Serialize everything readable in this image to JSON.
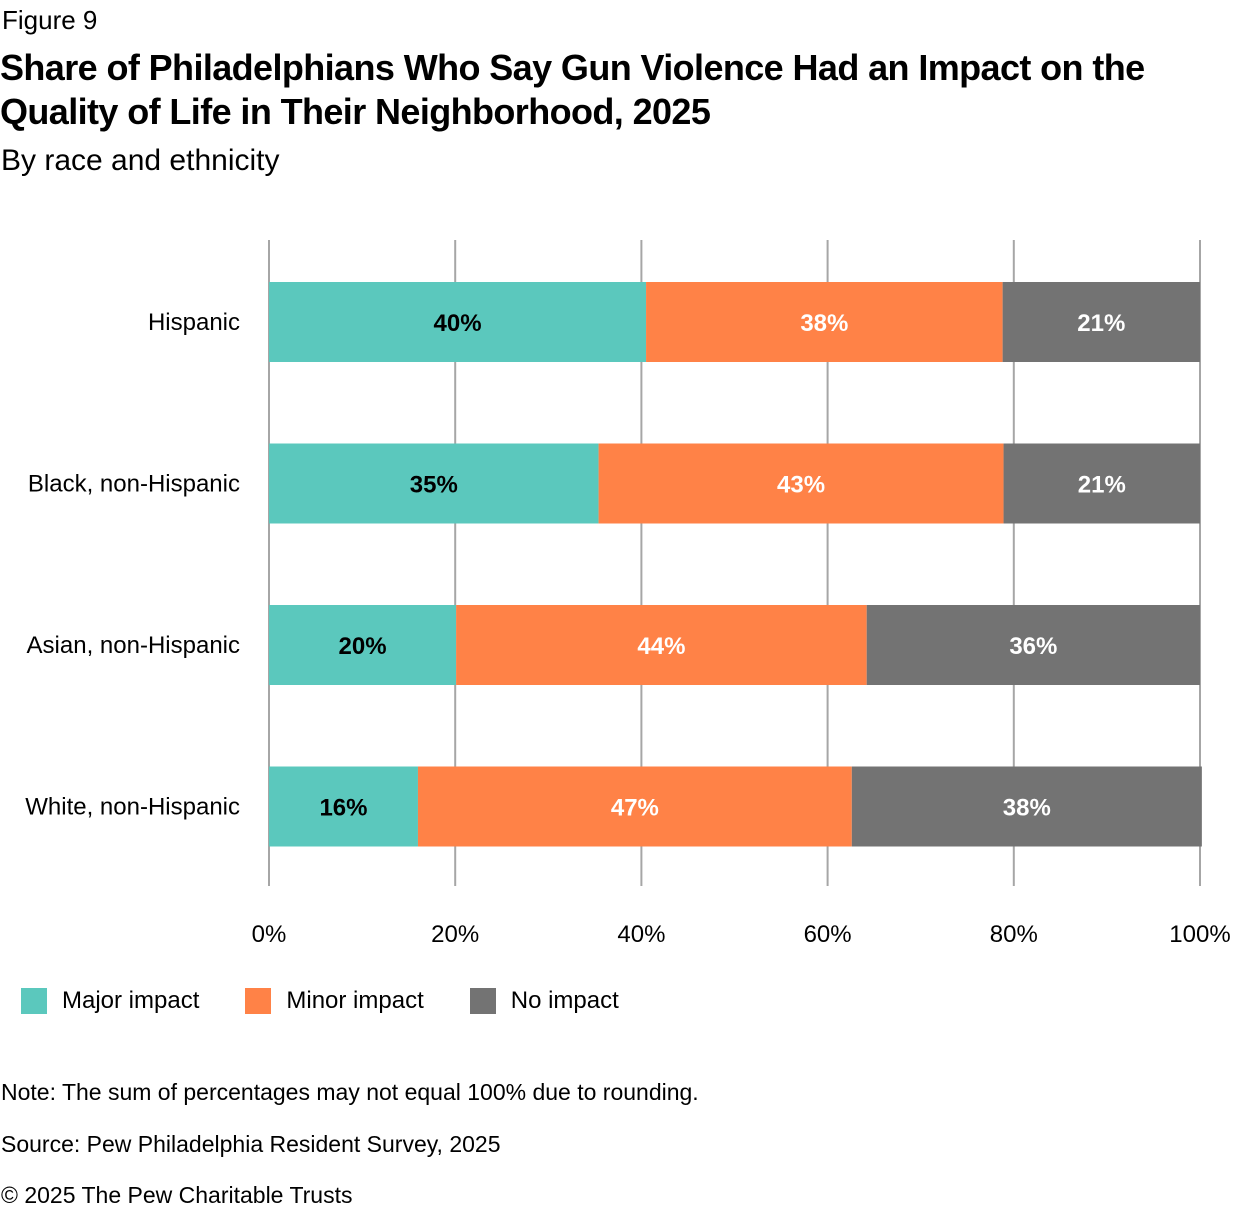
{
  "figure_label": "Figure 9",
  "chart_data": {
    "type": "bar",
    "orientation": "horizontal",
    "stacked": true,
    "title": "Share of Philadelphians Who Say Gun Violence Had an Impact on the Quality of Life in Their Neighborhood, 2025",
    "subtitle": "By race and ethnicity",
    "categories": [
      "Hispanic",
      "Black, non-Hispanic",
      "Asian, non-Hispanic",
      "White, non-Hispanic"
    ],
    "series": [
      {
        "name": "Major impact",
        "color": "#5bc8bd",
        "label_color": "#000000",
        "values": [
          40,
          35,
          20,
          16
        ],
        "rendered_values": [
          40.5,
          35.4,
          20.1,
          16.0
        ]
      },
      {
        "name": "Minor impact",
        "color": "#ff8247",
        "label_color": "#ffffff",
        "values": [
          38,
          43,
          44,
          47
        ],
        "rendered_values": [
          38.3,
          43.5,
          44.1,
          46.6
        ]
      },
      {
        "name": "No impact",
        "color": "#737373",
        "label_color": "#ffffff",
        "values": [
          21,
          21,
          36,
          38
        ],
        "rendered_values": [
          21.2,
          21.1,
          35.8,
          37.6
        ]
      }
    ],
    "xlim": [
      0,
      100
    ],
    "xticks": [
      "0%",
      "20%",
      "40%",
      "60%",
      "80%",
      "100%"
    ],
    "xtick_values": [
      0,
      20,
      40,
      60,
      80,
      100
    ],
    "grid": true,
    "legend_position": "bottom-left",
    "value_suffix": "%"
  },
  "footer": {
    "note": "Note: The sum of percentages may not equal 100% due to rounding.",
    "source": "Source: Pew Philadelphia Resident Survey, 2025",
    "copyright": "© 2025 The Pew Charitable Trusts"
  }
}
